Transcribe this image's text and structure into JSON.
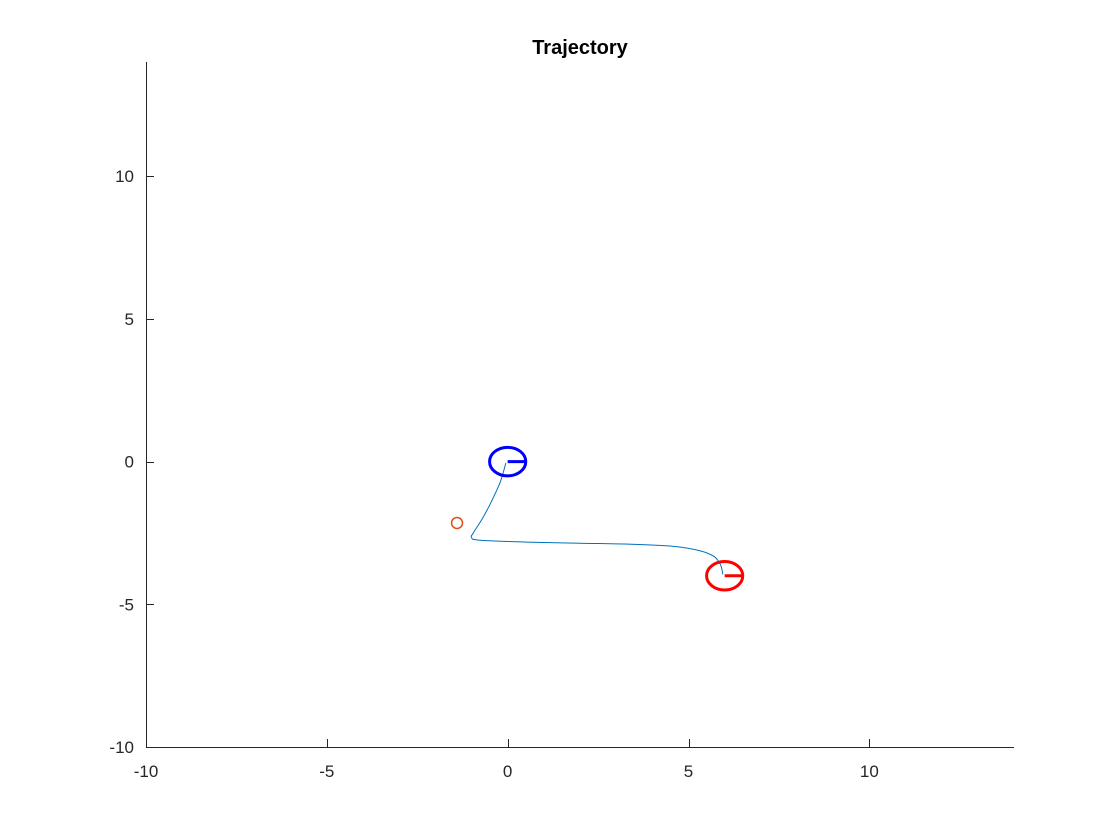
{
  "chart_data": {
    "type": "line",
    "title": "Trajectory",
    "xlabel": "",
    "ylabel": "",
    "xlim": [
      -10,
      14
    ],
    "ylim": [
      -10,
      14
    ],
    "xticks": [
      -10,
      -5,
      0,
      5,
      10
    ],
    "yticks": [
      -10,
      -5,
      0,
      5,
      10
    ],
    "x_tick_labels": [
      "-10",
      "-5",
      "0",
      "5",
      "10"
    ],
    "y_tick_labels": [
      "-10",
      "-5",
      "0",
      "5",
      "10"
    ],
    "grid": false,
    "legend": "none",
    "series": [
      {
        "kind": "line",
        "color": "#0072bd",
        "x": [
          -0.05,
          -0.2,
          -0.45,
          -0.7,
          -0.95,
          -1.0,
          -0.8,
          0.5,
          2.0,
          3.5,
          4.6,
          5.3,
          5.7,
          5.88,
          5.95
        ],
        "y": [
          -0.05,
          -0.7,
          -1.4,
          -2.0,
          -2.5,
          -2.65,
          -2.75,
          -2.82,
          -2.86,
          -2.9,
          -2.97,
          -3.12,
          -3.32,
          -3.6,
          -3.95
        ]
      },
      {
        "kind": "marker",
        "color": "#d95319",
        "x": [
          -1.4
        ],
        "y": [
          -2.15
        ]
      }
    ],
    "robots": [
      {
        "role": "start",
        "color": "#0000ff",
        "x": 0,
        "y": 0,
        "radius": 0.5,
        "heading_deg": 0
      },
      {
        "role": "goal",
        "color": "#ff0000",
        "x": 6,
        "y": -4,
        "radius": 0.5,
        "heading_deg": 0
      }
    ]
  }
}
